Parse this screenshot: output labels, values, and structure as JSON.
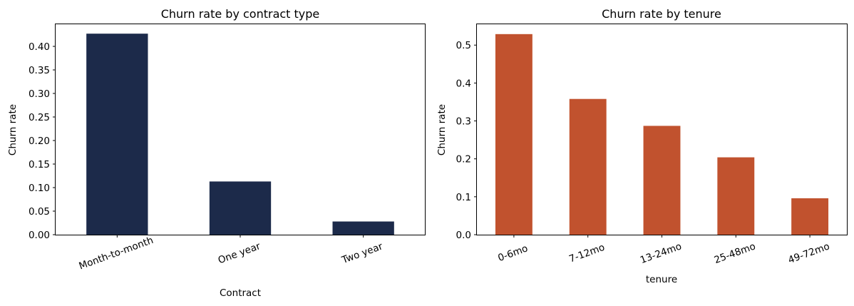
{
  "chart_data": [
    {
      "type": "bar",
      "title": "Churn rate by contract type",
      "xlabel": "Contract",
      "ylabel": "Churn rate",
      "categories": [
        "Month-to-month",
        "One year",
        "Two year"
      ],
      "values": [
        0.427,
        0.113,
        0.028
      ],
      "ylim": [
        0,
        0.447
      ],
      "yticks": [
        "0.00",
        "0.05",
        "0.10",
        "0.15",
        "0.20",
        "0.25",
        "0.30",
        "0.35",
        "0.40"
      ],
      "ytick_values": [
        0,
        0.05,
        0.1,
        0.15,
        0.2,
        0.25,
        0.3,
        0.35,
        0.4
      ],
      "color": "#1c2a4a",
      "grid": false,
      "legend": false
    },
    {
      "type": "bar",
      "title": "Churn rate by tenure",
      "xlabel": "tenure",
      "ylabel": "Churn rate",
      "categories": [
        "0-6mo",
        "7-12mo",
        "13-24mo",
        "25-48mo",
        "49-72mo"
      ],
      "values": [
        0.529,
        0.358,
        0.287,
        0.204,
        0.096
      ],
      "ylim": [
        0,
        0.555
      ],
      "yticks": [
        "0.0",
        "0.1",
        "0.2",
        "0.3",
        "0.4",
        "0.5"
      ],
      "ytick_values": [
        0,
        0.1,
        0.2,
        0.3,
        0.4,
        0.5
      ],
      "color": "#c1522e",
      "grid": false,
      "legend": false
    }
  ]
}
